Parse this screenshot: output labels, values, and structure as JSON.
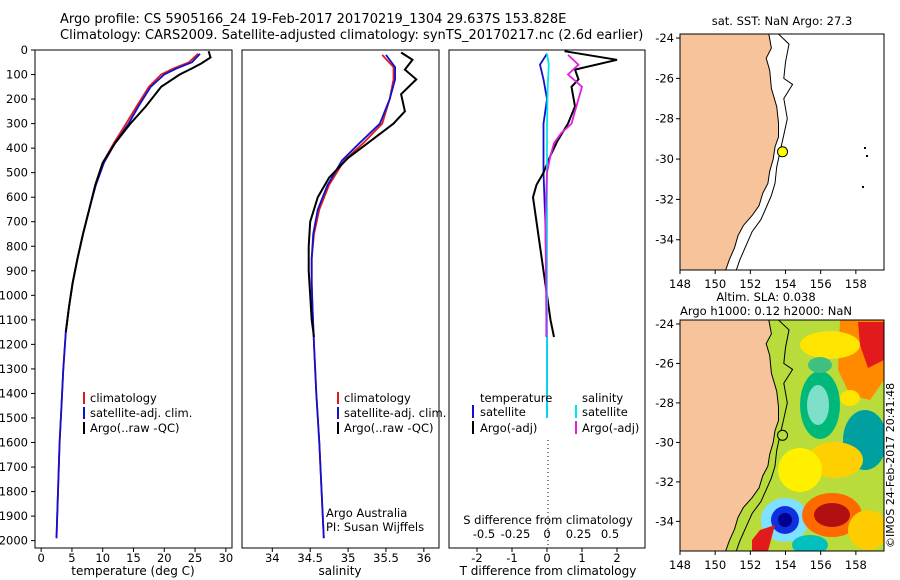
{
  "header": {
    "line1": "Argo profile: CS 5905166_24 19-Feb-2017 20170219_1304 29.637S 153.828E",
    "line2": "Climatology: CARS2009. Satellite-adjusted climatology: synTS_20170217.nc (2.6d earlier)"
  },
  "colors": {
    "climatology": "#e31a1c",
    "satellite": "#1010d0",
    "argo": "#000000",
    "salinity_satellite": "#00e5ee",
    "salinity_argo": "#e020e0",
    "land": "#f7c39a"
  },
  "depth_axis": {
    "ticks": [
      0,
      100,
      200,
      300,
      400,
      500,
      600,
      700,
      800,
      900,
      1000,
      1100,
      1200,
      1300,
      1400,
      1500,
      1600,
      1700,
      1800,
      1900,
      2000
    ]
  },
  "chart_data": [
    {
      "type": "line",
      "id": "temperature_profile",
      "xlabel": "temperature (deg C)",
      "xlim": [
        -1,
        31
      ],
      "ylim": [
        0,
        2030
      ],
      "xticks": [
        0,
        5,
        10,
        15,
        20,
        25,
        30
      ],
      "legend": [
        "climatology",
        "satellite-adj. clim.",
        "Argo(..raw -QC)"
      ],
      "series": [
        {
          "name": "climatology",
          "color_key": "climatology",
          "points": [
            [
              25.5,
              15
            ],
            [
              24.0,
              50
            ],
            [
              21.5,
              75
            ],
            [
              19.5,
              100
            ],
            [
              17.5,
              150
            ],
            [
              15.5,
              230
            ],
            [
              13.8,
              300
            ],
            [
              11.8,
              380
            ],
            [
              10.0,
              460
            ],
            [
              8.8,
              550
            ],
            [
              7.8,
              650
            ],
            [
              6.8,
              750
            ],
            [
              5.9,
              850
            ],
            [
              5.1,
              950
            ],
            [
              4.5,
              1050
            ],
            [
              4.0,
              1150
            ],
            [
              3.6,
              1300
            ],
            [
              3.3,
              1450
            ],
            [
              3.0,
              1600
            ],
            [
              2.8,
              1750
            ],
            [
              2.6,
              1900
            ],
            [
              2.5,
              1990
            ]
          ]
        },
        {
          "name": "satellite-adj. clim.",
          "color_key": "satellite",
          "points": [
            [
              25.8,
              15
            ],
            [
              24.5,
              50
            ],
            [
              22.0,
              75
            ],
            [
              20.0,
              100
            ],
            [
              17.8,
              150
            ],
            [
              15.8,
              230
            ],
            [
              14.2,
              300
            ],
            [
              12.0,
              380
            ],
            [
              10.2,
              460
            ],
            [
              8.9,
              550
            ],
            [
              7.8,
              650
            ],
            [
              6.8,
              750
            ],
            [
              5.9,
              850
            ],
            [
              5.1,
              950
            ],
            [
              4.5,
              1050
            ],
            [
              4.0,
              1150
            ],
            [
              3.6,
              1300
            ],
            [
              3.3,
              1450
            ],
            [
              3.0,
              1600
            ],
            [
              2.8,
              1750
            ],
            [
              2.6,
              1900
            ],
            [
              2.5,
              1990
            ]
          ]
        },
        {
          "name": "Argo(..raw -QC)",
          "color_key": "argo",
          "points": [
            [
              27.2,
              5
            ],
            [
              27.5,
              30
            ],
            [
              26.0,
              55
            ],
            [
              24.5,
              75
            ],
            [
              22.5,
              100
            ],
            [
              19.5,
              150
            ],
            [
              17.0,
              230
            ],
            [
              14.5,
              300
            ],
            [
              12.0,
              380
            ],
            [
              10.0,
              460
            ],
            [
              8.8,
              550
            ],
            [
              7.8,
              650
            ],
            [
              6.8,
              750
            ],
            [
              5.9,
              850
            ],
            [
              5.1,
              950
            ],
            [
              4.5,
              1050
            ],
            [
              4.0,
              1150
            ]
          ]
        }
      ]
    },
    {
      "type": "line",
      "id": "salinity_profile",
      "xlabel": "salinity",
      "xlim": [
        33.6,
        36.2
      ],
      "ylim": [
        0,
        2030
      ],
      "xticks": [
        34,
        34.5,
        35,
        35.5,
        36
      ],
      "legend": [
        "climatology",
        "satellite-adj. clim.",
        "Argo(..raw -QC)"
      ],
      "series": [
        {
          "name": "climatology",
          "color_key": "climatology",
          "points": [
            [
              35.45,
              20
            ],
            [
              35.6,
              70
            ],
            [
              35.6,
              120
            ],
            [
              35.55,
              200
            ],
            [
              35.45,
              300
            ],
            [
              35.2,
              380
            ],
            [
              34.95,
              450
            ],
            [
              34.75,
              550
            ],
            [
              34.62,
              650
            ],
            [
              34.55,
              750
            ],
            [
              34.52,
              850
            ],
            [
              34.52,
              950
            ],
            [
              34.53,
              1050
            ],
            [
              34.55,
              1200
            ],
            [
              34.58,
              1400
            ],
            [
              34.62,
              1600
            ],
            [
              34.65,
              1800
            ],
            [
              34.68,
              1990
            ]
          ]
        },
        {
          "name": "satellite-adj. clim.",
          "color_key": "satellite",
          "points": [
            [
              35.5,
              20
            ],
            [
              35.62,
              70
            ],
            [
              35.62,
              120
            ],
            [
              35.55,
              200
            ],
            [
              35.42,
              300
            ],
            [
              35.15,
              380
            ],
            [
              34.92,
              450
            ],
            [
              34.73,
              550
            ],
            [
              34.6,
              650
            ],
            [
              34.54,
              750
            ],
            [
              34.52,
              850
            ],
            [
              34.52,
              950
            ],
            [
              34.53,
              1050
            ],
            [
              34.55,
              1200
            ],
            [
              34.58,
              1400
            ],
            [
              34.62,
              1600
            ],
            [
              34.65,
              1800
            ],
            [
              34.68,
              1990
            ]
          ]
        },
        {
          "name": "Argo(..raw -QC)",
          "color_key": "argo",
          "points": [
            [
              35.7,
              10
            ],
            [
              35.85,
              40
            ],
            [
              35.75,
              80
            ],
            [
              35.9,
              120
            ],
            [
              35.7,
              180
            ],
            [
              35.75,
              250
            ],
            [
              35.6,
              300
            ],
            [
              35.3,
              370
            ],
            [
              35.0,
              440
            ],
            [
              34.75,
              520
            ],
            [
              34.6,
              600
            ],
            [
              34.5,
              700
            ],
            [
              34.48,
              800
            ],
            [
              34.48,
              900
            ],
            [
              34.5,
              1000
            ],
            [
              34.52,
              1100
            ],
            [
              34.55,
              1170
            ]
          ]
        }
      ]
    },
    {
      "type": "line",
      "id": "difference_profile",
      "xlabel": "T difference from climatology",
      "xlabel_top": "S difference from climatology",
      "xlim": [
        -2.8,
        2.8
      ],
      "ylim": [
        0,
        2030
      ],
      "xticks": [
        -2,
        -1,
        0,
        1,
        2
      ],
      "xticks_s": [
        "-0.5",
        "-0.25",
        "0",
        "0.25",
        "0.5"
      ],
      "legend_temperature_title": "temperature",
      "legend_salinity_title": "salinity",
      "legend_temperature": [
        "satellite",
        "Argo(-adj)"
      ],
      "legend_salinity": [
        "satellite",
        "Argo(-adj)"
      ],
      "series": [
        {
          "name": "T satellite",
          "color_key": "satellite",
          "points": [
            [
              0.0,
              15
            ],
            [
              -0.2,
              60
            ],
            [
              -0.1,
              120
            ],
            [
              0.0,
              200
            ],
            [
              -0.1,
              300
            ],
            [
              -0.1,
              400
            ],
            [
              -0.1,
              500
            ],
            [
              -0.05,
              700
            ],
            [
              -0.02,
              900
            ],
            [
              0.0,
              1200
            ],
            [
              0.0,
              1500
            ]
          ]
        },
        {
          "name": "T Argo(-adj)",
          "color_key": "argo",
          "points": [
            [
              0.5,
              5
            ],
            [
              2.0,
              40
            ],
            [
              0.8,
              80
            ],
            [
              0.9,
              120
            ],
            [
              0.7,
              150
            ],
            [
              0.8,
              230
            ],
            [
              0.6,
              300
            ],
            [
              0.3,
              370
            ],
            [
              0.1,
              430
            ],
            [
              -0.1,
              500
            ],
            [
              -0.3,
              550
            ],
            [
              -0.4,
              600
            ],
            [
              -0.3,
              700
            ],
            [
              -0.2,
              800
            ],
            [
              -0.1,
              900
            ],
            [
              0.0,
              1000
            ],
            [
              0.1,
              1100
            ],
            [
              0.2,
              1170
            ]
          ]
        },
        {
          "name": "S satellite",
          "color_key": "salinity_satellite",
          "points": [
            [
              0.0,
              15
            ],
            [
              0.05,
              60
            ],
            [
              0.02,
              150
            ],
            [
              0.0,
              300
            ],
            [
              0.0,
              600
            ],
            [
              0.0,
              1000
            ],
            [
              0.0,
              1500
            ]
          ]
        },
        {
          "name": "S Argo(-adj)",
          "color_key": "salinity_argo",
          "points": [
            [
              0.6,
              20
            ],
            [
              0.9,
              60
            ],
            [
              0.6,
              100
            ],
            [
              1.0,
              150
            ],
            [
              0.8,
              250
            ],
            [
              0.7,
              300
            ],
            [
              0.4,
              340
            ],
            [
              0.2,
              380
            ],
            [
              0.1,
              430
            ],
            [
              0.0,
              500
            ],
            [
              -0.05,
              700
            ],
            [
              -0.03,
              900
            ],
            [
              -0.02,
              1100
            ],
            [
              -0.02,
              1170
            ]
          ]
        }
      ]
    },
    {
      "type": "heatmap",
      "id": "sst_map",
      "title": "sat. SST: NaN Argo: 27.3",
      "xlim": [
        148,
        159.6
      ],
      "ylim": [
        -35.5,
        -23.8
      ],
      "xticks": [
        148,
        150,
        152,
        154,
        156,
        158
      ],
      "yticks": [
        -24,
        -26,
        -28,
        -30,
        -32,
        -34
      ],
      "marker": {
        "lon": 153.83,
        "lat": -29.64
      }
    },
    {
      "type": "heatmap",
      "id": "sla_map",
      "title1": "Altim. SLA: 0.038",
      "title2": "Argo h1000: 0.12 h2000: NaN",
      "xlim": [
        148,
        159.6
      ],
      "ylim": [
        -35.5,
        -23.8
      ],
      "xticks": [
        148,
        150,
        152,
        154,
        156,
        158
      ],
      "yticks": [
        -24,
        -26,
        -28,
        -30,
        -32,
        -34
      ],
      "marker": {
        "lon": 153.83,
        "lat": -29.64
      },
      "credit": "©IMOS 24-Feb-2017 20:41:48"
    }
  ],
  "panels": {
    "temp_legend": [
      "climatology",
      "satellite-adj. clim.",
      "Argo(..raw -QC)"
    ],
    "sal_note1": "Argo Australia",
    "sal_note2": "PI: Susan Wijffels"
  }
}
